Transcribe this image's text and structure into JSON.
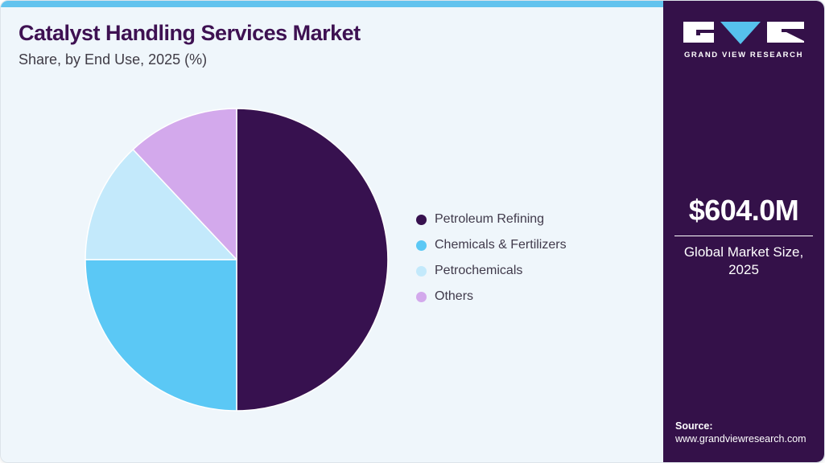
{
  "header": {
    "title": "Catalyst Handling Services Market",
    "subtitle": "Share, by End Use, 2025 (%)"
  },
  "chart_data": {
    "type": "pie",
    "title": "Catalyst Handling Services Market Share, by End Use, 2025 (%)",
    "categories": [
      "Petroleum Refining",
      "Chemicals & Fertilizers",
      "Petrochemicals",
      "Others"
    ],
    "values": [
      50,
      25,
      13,
      12
    ],
    "unit": "%",
    "colors": [
      "#37114f",
      "#5bc8f5",
      "#c3e9fb",
      "#d3a9ec"
    ],
    "legend_position": "right",
    "start_angle_deg": 0,
    "direction": "clockwise",
    "slice_border_color": "#ffffff"
  },
  "side_panel": {
    "brand_name": "GRAND VIEW RESEARCH",
    "market_size_value": "$604.0M",
    "market_size_label": "Global Market Size, 2025",
    "source_label": "Source:",
    "source_url": "www.grandviewresearch.com"
  },
  "colors": {
    "accent_stripe": "#62c3ee",
    "panel_bg": "#341149",
    "main_bg": "#eff6fb",
    "title_text": "#3e1152",
    "body_text": "#3f3b45",
    "logo_triangle": "#56c1ed"
  }
}
